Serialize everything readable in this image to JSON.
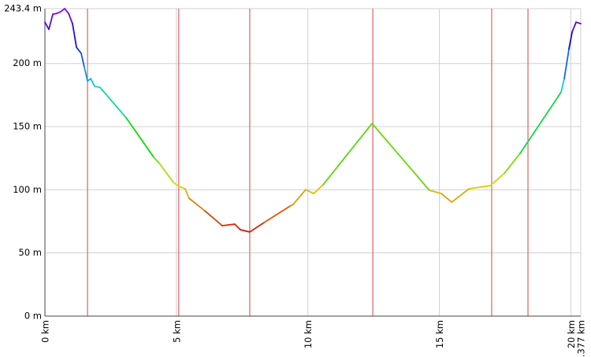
{
  "chart_data": {
    "type": "elevation-profile",
    "x": [
      0,
      0.15,
      0.3,
      0.45,
      0.6,
      0.75,
      0.9,
      1.05,
      1.2,
      1.38,
      1.5,
      1.62,
      1.74,
      1.89,
      2.1,
      3.09,
      4.14,
      4.35,
      4.88,
      5.09,
      5.33,
      5.48,
      6.08,
      6.74,
      7.22,
      7.43,
      7.79,
      8.33,
      9.32,
      9.44,
      9.92,
      10.22,
      10.58,
      12.44,
      14.62,
      15.08,
      15.47,
      16.13,
      16.94,
      17.47,
      18.07,
      19.63,
      19.75,
      19.93,
      20.05,
      20.2,
      20.377
    ],
    "values": [
      232.7,
      227,
      239,
      239.6,
      241,
      243.4,
      239.6,
      231.5,
      212.8,
      208,
      197,
      186,
      188,
      182,
      181,
      157,
      125.7,
      121,
      106,
      102.7,
      100.8,
      93.3,
      83.4,
      71.6,
      72.8,
      68.4,
      66.6,
      74,
      87.1,
      88.4,
      100.2,
      97,
      104,
      152.5,
      99.6,
      97,
      90.2,
      100.8,
      103.3,
      113,
      128.8,
      177.3,
      188,
      211.6,
      225,
      232.7,
      231.5
    ],
    "xlim": [
      0,
      20.377
    ],
    "xticks": [
      {
        "value": 0,
        "label": "0 km"
      },
      {
        "value": 5,
        "label": "5 km"
      },
      {
        "value": 10,
        "label": "10 km"
      },
      {
        "value": 15,
        "label": "15 km"
      },
      {
        "value": 20,
        "label": "20 km"
      },
      {
        "value": 20.377,
        "label": "20.377 km"
      }
    ],
    "ylim": [
      0,
      243.4
    ],
    "yticks": [
      {
        "value": 0,
        "label": "0 m"
      },
      {
        "value": 50,
        "label": "50 m"
      },
      {
        "value": 100,
        "label": "100 m"
      },
      {
        "value": 150,
        "label": "150 m"
      },
      {
        "value": 200,
        "label": "200 m"
      },
      {
        "value": 243.4,
        "label": "243.4 m"
      }
    ],
    "grid": true,
    "markers": [
      1.62,
      5.09,
      7.79,
      12.47,
      16.99,
      18.37
    ],
    "marker_color": "#e06060"
  }
}
